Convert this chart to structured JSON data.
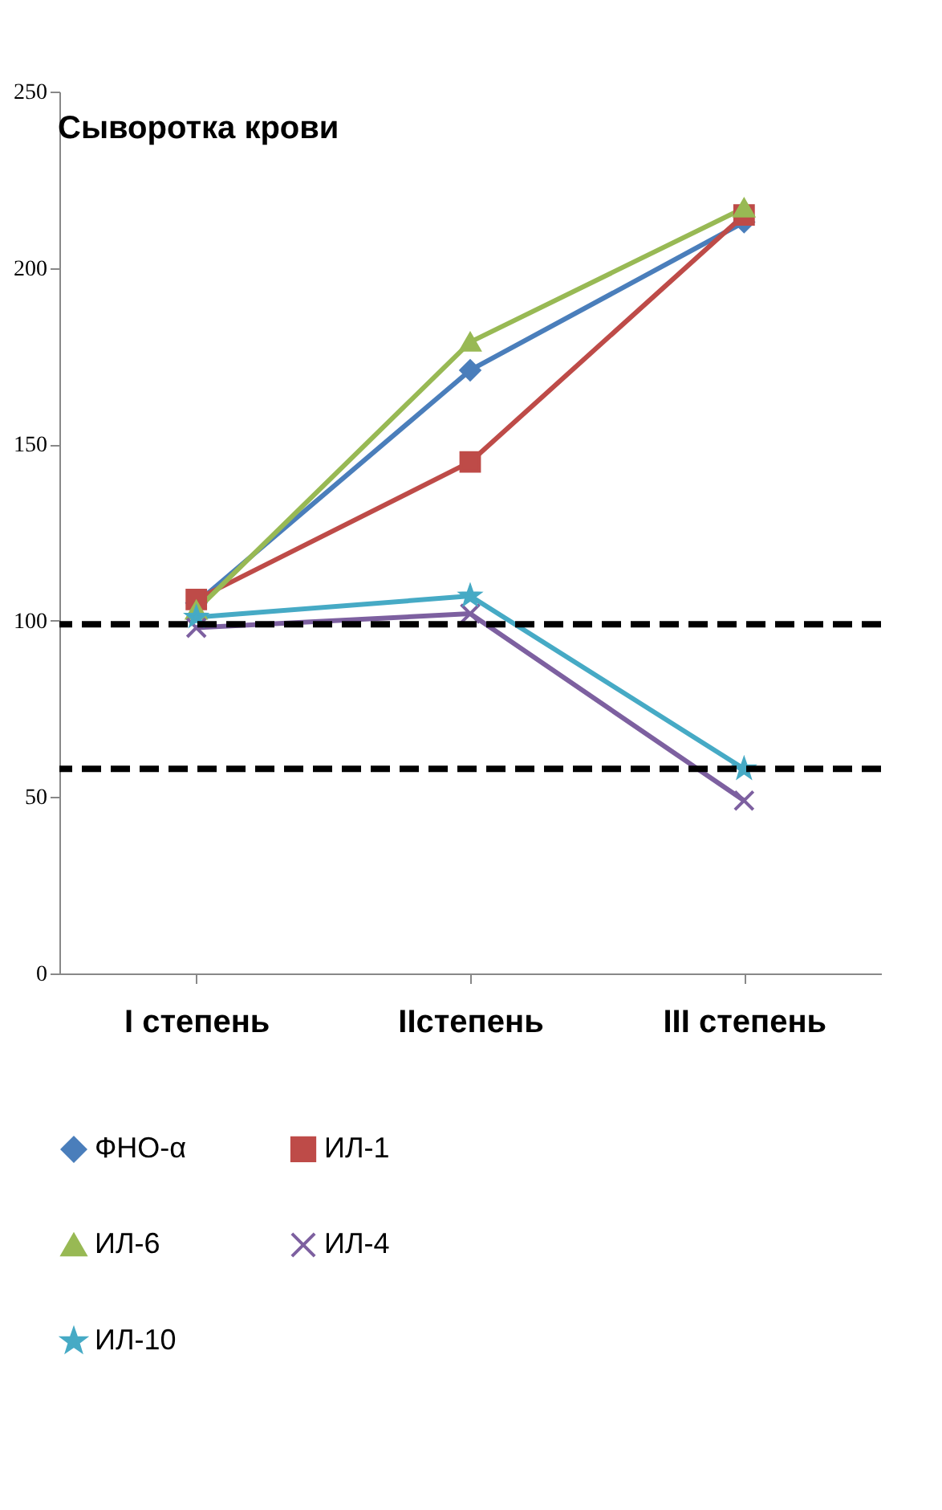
{
  "chart_data": {
    "type": "line",
    "title": "Сыворотка крови",
    "categories": [
      "I степень",
      "IIстепень",
      "III степень"
    ],
    "series": [
      {
        "name": "ФНО-α",
        "color": "#4a7ebb",
        "marker": "diamond",
        "values": [
          105,
          171,
          213
        ]
      },
      {
        "name": "ИЛ-1",
        "color": "#be4b48",
        "marker": "square",
        "values": [
          106,
          145,
          215
        ]
      },
      {
        "name": "ИЛ-6",
        "color": "#98b954",
        "marker": "triangle",
        "values": [
          103,
          179,
          217
        ]
      },
      {
        "name": "ИЛ-4",
        "color": "#7d60a0",
        "marker": "cross",
        "values": [
          98,
          102,
          49
        ]
      },
      {
        "name": "ИЛ-10",
        "color": "#46aac5",
        "marker": "star",
        "values": [
          101,
          107,
          58
        ]
      }
    ],
    "ylim": [
      0,
      250
    ],
    "yticks": [
      0,
      50,
      100,
      150,
      200,
      250
    ],
    "grid": false,
    "legend": "bottom",
    "ref_lines": [
      {
        "axis": "y",
        "value": 99,
        "color": "#000000",
        "line_style": "dashed"
      },
      {
        "axis": "y",
        "value": 58,
        "color": "#000000",
        "line_style": "dashed"
      }
    ]
  }
}
